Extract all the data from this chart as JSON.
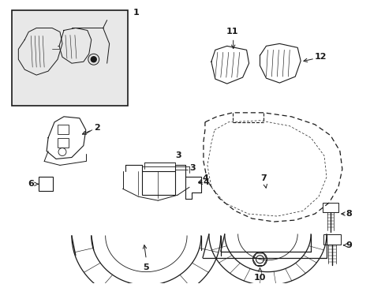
{
  "bg_color": "#ffffff",
  "line_color": "#1a1a1a",
  "box_bg": "#ebebeb",
  "fig_width": 4.89,
  "fig_height": 3.6,
  "dpi": 100
}
